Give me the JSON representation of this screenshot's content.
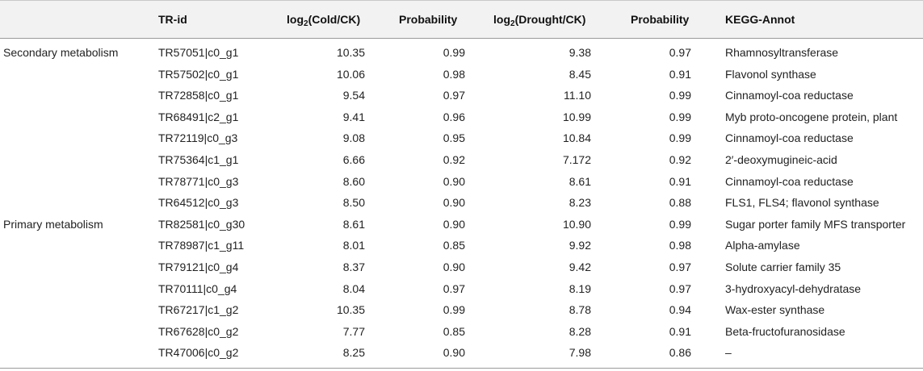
{
  "headers": {
    "trid": "TR-id",
    "cold_prefix": "log",
    "cold_sub": "2",
    "cold_rest": "(Cold/CK)",
    "prob1": "Probability",
    "drought_prefix": "log",
    "drought_sub": "2",
    "drought_rest": "(Drought/CK)",
    "prob2": "Probability",
    "kegg": "KEGG-Annot"
  },
  "rows": [
    {
      "group": "Secondary metabolism",
      "trid": "TR57051|c0_g1",
      "cold": "10.35",
      "prob1": "0.99",
      "drought": "9.38",
      "prob2": "0.97",
      "kegg": "Rhamnosyltransferase"
    },
    {
      "group": "",
      "trid": "TR57502|c0_g1",
      "cold": "10.06",
      "prob1": "0.98",
      "drought": "8.45",
      "prob2": "0.91",
      "kegg": "Flavonol synthase"
    },
    {
      "group": "",
      "trid": "TR72858|c0_g1",
      "cold": "9.54",
      "prob1": "0.97",
      "drought": "11.10",
      "prob2": "0.99",
      "kegg": "Cinnamoyl-coa reductase"
    },
    {
      "group": "",
      "trid": "TR68491|c2_g1",
      "cold": "9.41",
      "prob1": "0.96",
      "drought": "10.99",
      "prob2": "0.99",
      "kegg": "Myb proto-oncogene protein, plant"
    },
    {
      "group": "",
      "trid": "TR72119|c0_g3",
      "cold": "9.08",
      "prob1": "0.95",
      "drought": "10.84",
      "prob2": "0.99",
      "kegg": "Cinnamoyl-coa reductase"
    },
    {
      "group": "",
      "trid": "TR75364|c1_g1",
      "cold": "6.66",
      "prob1": "0.92",
      "drought": "7.172",
      "prob2": "0.92",
      "kegg": "2′-deoxymugineic-acid"
    },
    {
      "group": "",
      "trid": "TR78771|c0_g3",
      "cold": "8.60",
      "prob1": "0.90",
      "drought": "8.61",
      "prob2": "0.91",
      "kegg": "Cinnamoyl-coa reductase"
    },
    {
      "group": "",
      "trid": "TR64512|c0_g3",
      "cold": "8.50",
      "prob1": "0.90",
      "drought": "8.23",
      "prob2": "0.88",
      "kegg": "FLS1, FLS4; flavonol synthase"
    },
    {
      "group": "Primary metabolism",
      "trid": "TR82581|c0_g30",
      "cold": "8.61",
      "prob1": "0.90",
      "drought": "10.90",
      "prob2": "0.99",
      "kegg": "Sugar porter family MFS transporter"
    },
    {
      "group": "",
      "trid": "TR78987|c1_g11",
      "cold": "8.01",
      "prob1": "0.85",
      "drought": "9.92",
      "prob2": "0.98",
      "kegg": "Alpha-amylase"
    },
    {
      "group": "",
      "trid": "TR79121|c0_g4",
      "cold": "8.37",
      "prob1": "0.90",
      "drought": "9.42",
      "prob2": "0.97",
      "kegg": "Solute carrier family 35"
    },
    {
      "group": "",
      "trid": "TR70111|c0_g4",
      "cold": "8.04",
      "prob1": "0.97",
      "drought": "8.19",
      "prob2": "0.97",
      "kegg": "3-hydroxyacyl-dehydratase"
    },
    {
      "group": "",
      "trid": "TR67217|c1_g2",
      "cold": "10.35",
      "prob1": "0.99",
      "drought": "8.78",
      "prob2": "0.94",
      "kegg": "Wax-ester synthase"
    },
    {
      "group": "",
      "trid": "TR67628|c0_g2",
      "cold": "7.77",
      "prob1": "0.85",
      "drought": "8.28",
      "prob2": "0.91",
      "kegg": "Beta-fructofuranosidase"
    },
    {
      "group": "",
      "trid": "TR47006|c0_g2",
      "cold": "8.25",
      "prob1": "0.90",
      "drought": "7.98",
      "prob2": "0.86",
      "kegg": "–"
    }
  ]
}
